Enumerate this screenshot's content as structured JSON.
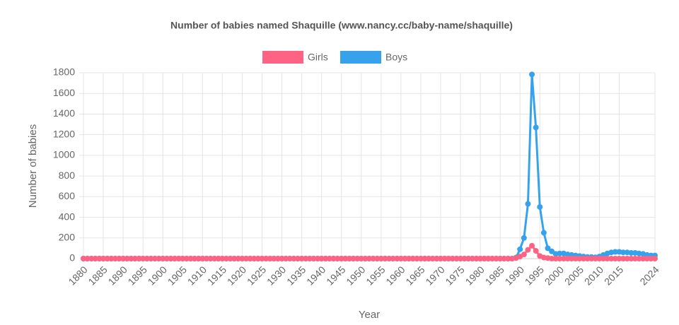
{
  "chart_data": {
    "type": "line",
    "title": "Number of babies named Shaquille (www.nancy.cc/baby-name/shaquille)",
    "x_label": "Year",
    "y_label": "Number of babies",
    "x": [
      1880,
      1881,
      1882,
      1883,
      1884,
      1885,
      1886,
      1887,
      1888,
      1889,
      1890,
      1891,
      1892,
      1893,
      1894,
      1895,
      1896,
      1897,
      1898,
      1899,
      1900,
      1901,
      1902,
      1903,
      1904,
      1905,
      1906,
      1907,
      1908,
      1909,
      1910,
      1911,
      1912,
      1913,
      1914,
      1915,
      1916,
      1917,
      1918,
      1919,
      1920,
      1921,
      1922,
      1923,
      1924,
      1925,
      1926,
      1927,
      1928,
      1929,
      1930,
      1931,
      1932,
      1933,
      1934,
      1935,
      1936,
      1937,
      1938,
      1939,
      1940,
      1941,
      1942,
      1943,
      1944,
      1945,
      1946,
      1947,
      1948,
      1949,
      1950,
      1951,
      1952,
      1953,
      1954,
      1955,
      1956,
      1957,
      1958,
      1959,
      1960,
      1961,
      1962,
      1963,
      1964,
      1965,
      1966,
      1967,
      1968,
      1969,
      1970,
      1971,
      1972,
      1973,
      1974,
      1975,
      1976,
      1977,
      1978,
      1979,
      1980,
      1981,
      1982,
      1983,
      1984,
      1985,
      1986,
      1987,
      1988,
      1989,
      1990,
      1991,
      1992,
      1993,
      1994,
      1995,
      1996,
      1997,
      1998,
      1999,
      2000,
      2001,
      2002,
      2003,
      2004,
      2005,
      2006,
      2007,
      2008,
      2009,
      2010,
      2011,
      2012,
      2013,
      2014,
      2015,
      2016,
      2017,
      2018,
      2019,
      2020,
      2021,
      2022,
      2023,
      2024
    ],
    "series": [
      {
        "name": "Girls",
        "color": "#ff6384",
        "values": [
          0,
          0,
          0,
          0,
          0,
          0,
          0,
          0,
          0,
          0,
          0,
          0,
          0,
          0,
          0,
          0,
          0,
          0,
          0,
          0,
          0,
          0,
          0,
          0,
          0,
          0,
          0,
          0,
          0,
          0,
          0,
          0,
          0,
          0,
          0,
          0,
          0,
          0,
          0,
          0,
          0,
          0,
          0,
          0,
          0,
          0,
          0,
          0,
          0,
          0,
          0,
          0,
          0,
          0,
          0,
          0,
          0,
          0,
          0,
          0,
          0,
          0,
          0,
          0,
          0,
          0,
          0,
          0,
          0,
          0,
          0,
          0,
          0,
          0,
          0,
          0,
          0,
          0,
          0,
          0,
          0,
          0,
          0,
          0,
          0,
          0,
          0,
          0,
          0,
          0,
          0,
          0,
          0,
          0,
          0,
          0,
          0,
          0,
          0,
          0,
          0,
          0,
          0,
          0,
          0,
          0,
          0,
          0,
          0,
          5,
          20,
          40,
          85,
          125,
          75,
          25,
          10,
          5,
          0,
          0,
          0,
          0,
          0,
          0,
          0,
          0,
          0,
          0,
          0,
          0,
          0,
          0,
          0,
          0,
          0,
          0,
          0,
          0,
          0,
          0,
          0,
          0,
          0,
          0,
          0
        ]
      },
      {
        "name": "Boys",
        "color": "#36a2eb",
        "values": [
          0,
          0,
          0,
          0,
          0,
          0,
          0,
          0,
          0,
          0,
          0,
          0,
          0,
          0,
          0,
          0,
          0,
          0,
          0,
          0,
          0,
          0,
          0,
          0,
          0,
          0,
          0,
          0,
          0,
          0,
          0,
          0,
          0,
          0,
          0,
          0,
          0,
          0,
          0,
          0,
          0,
          0,
          0,
          0,
          0,
          0,
          0,
          0,
          0,
          0,
          0,
          0,
          0,
          0,
          0,
          0,
          0,
          0,
          0,
          0,
          0,
          0,
          0,
          0,
          0,
          0,
          0,
          0,
          0,
          0,
          0,
          0,
          0,
          0,
          0,
          0,
          0,
          0,
          0,
          0,
          0,
          0,
          0,
          0,
          0,
          0,
          0,
          0,
          0,
          0,
          0,
          0,
          0,
          0,
          0,
          0,
          0,
          0,
          0,
          0,
          0,
          0,
          0,
          0,
          0,
          0,
          0,
          0,
          0,
          10,
          90,
          200,
          530,
          1784,
          1270,
          500,
          250,
          100,
          70,
          45,
          50,
          50,
          40,
          35,
          30,
          25,
          20,
          15,
          15,
          12,
          20,
          35,
          50,
          60,
          65,
          65,
          60,
          60,
          55,
          55,
          50,
          45,
          35,
          30,
          30
        ]
      }
    ],
    "xlim": [
      1880,
      2024
    ],
    "xticks": [
      1880,
      1885,
      1890,
      1895,
      1900,
      1905,
      1910,
      1915,
      1920,
      1925,
      1930,
      1935,
      1940,
      1945,
      1950,
      1955,
      1960,
      1965,
      1970,
      1975,
      1980,
      1985,
      1990,
      1995,
      2000,
      2005,
      2010,
      2015,
      2024
    ],
    "ylim": [
      0,
      1800
    ],
    "yticks": [
      0,
      200,
      400,
      600,
      800,
      1000,
      1200,
      1400,
      1600,
      1800
    ],
    "grid": true,
    "legend": "top"
  }
}
